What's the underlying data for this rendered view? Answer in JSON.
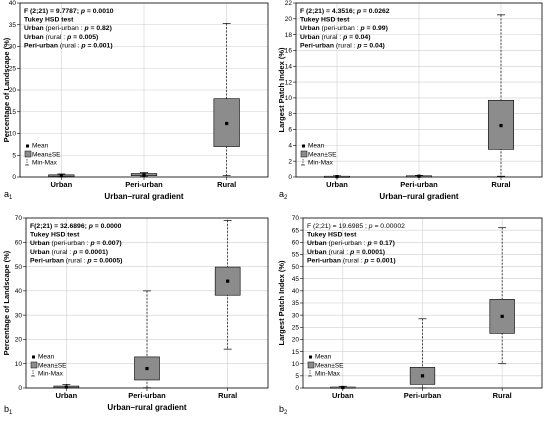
{
  "panels": [
    {
      "panel_label": "a",
      "panel_sub": "1",
      "stats_lines": [
        [
          {
            "t": "F (2;21) = 9.7787; ",
            "b": true
          },
          {
            "t": "p",
            "b": true,
            "i": true
          },
          {
            "t": " = 0.0010",
            "b": true
          }
        ],
        [
          {
            "t": "Tukey HSD test",
            "b": true
          }
        ],
        [
          {
            "t": "Urban ",
            "b": true
          },
          {
            "t": "(peri-urban : ",
            "b": false
          },
          {
            "t": "p",
            "b": true,
            "i": true
          },
          {
            "t": " = 0.82)",
            "b": true
          }
        ],
        [
          {
            "t": "Urban ",
            "b": true
          },
          {
            "t": "(rural : ",
            "b": false
          },
          {
            "t": "p",
            "b": true,
            "i": true
          },
          {
            "t": " = 0.005)",
            "b": true
          }
        ],
        [
          {
            "t": "Peri-urban ",
            "b": true
          },
          {
            "t": "(rural : ",
            "b": false
          },
          {
            "t": "p",
            "b": true,
            "i": true
          },
          {
            "t": " = 0.001)",
            "b": true
          }
        ]
      ],
      "legend": {
        "mean": "Mean",
        "se": "Mean±SE",
        "minmax": "Min-Max"
      },
      "chart_data": {
        "type": "box",
        "ylabel": "Percentage of Landscape (%)",
        "xlabel": "Urban–rural gradient",
        "categories": [
          "Urban",
          "Peri-urban",
          "Rural"
        ],
        "ylim": [
          0,
          40
        ],
        "yticks": [
          0,
          5,
          10,
          15,
          20,
          25,
          30,
          35,
          40
        ],
        "series": [
          {
            "category": "Urban",
            "mean": 0.3,
            "se_low": 0.1,
            "se_high": 0.5,
            "min": 0.0,
            "max": 0.7
          },
          {
            "category": "Peri-urban",
            "mean": 0.5,
            "se_low": 0.3,
            "se_high": 0.8,
            "min": 0.1,
            "max": 1.0
          },
          {
            "category": "Rural",
            "mean": 12.3,
            "se_low": 7.0,
            "se_high": 18.0,
            "min": 0.3,
            "max": 35.3
          }
        ]
      }
    },
    {
      "panel_label": "a",
      "panel_sub": "2",
      "stats_lines": [
        [
          {
            "t": "F (2;21) = 4.3516; ",
            "b": true
          },
          {
            "t": "p",
            "b": true,
            "i": true
          },
          {
            "t": " = 0.0262",
            "b": true
          }
        ],
        [
          {
            "t": "Tukey HSD test",
            "b": true
          }
        ],
        [
          {
            "t": "Urban ",
            "b": true
          },
          {
            "t": "(peri-urban : ",
            "b": false
          },
          {
            "t": "p",
            "b": true,
            "i": true
          },
          {
            "t": " = 0.99)",
            "b": true
          }
        ],
        [
          {
            "t": "Urban ",
            "b": true
          },
          {
            "t": "(rural : ",
            "b": false
          },
          {
            "t": "p",
            "b": true,
            "i": true
          },
          {
            "t": " = 0.04)",
            "b": true
          }
        ],
        [
          {
            "t": "Peri-urban ",
            "b": true
          },
          {
            "t": "(rural : ",
            "b": false
          },
          {
            "t": "p",
            "b": true,
            "i": true
          },
          {
            "t": " = 0.04)",
            "b": true
          }
        ]
      ],
      "legend": {
        "mean": "Mean",
        "se": "Mean±SE",
        "minmax": "Min-Max"
      },
      "chart_data": {
        "type": "box",
        "ylabel": "Largest Patch Index (%)",
        "xlabel": "Urban–rural gradient",
        "categories": [
          "Urban",
          "Peri-urban",
          "Rural"
        ],
        "ylim": [
          0,
          22
        ],
        "yticks": [
          0,
          2,
          4,
          6,
          8,
          10,
          12,
          14,
          16,
          18,
          20,
          22
        ],
        "series": [
          {
            "category": "Urban",
            "mean": 0.05,
            "se_low": 0.0,
            "se_high": 0.1,
            "min": 0.0,
            "max": 0.15
          },
          {
            "category": "Peri-urban",
            "mean": 0.1,
            "se_low": 0.05,
            "se_high": 0.15,
            "min": 0.0,
            "max": 0.2
          },
          {
            "category": "Rural",
            "mean": 6.5,
            "se_low": 3.5,
            "se_high": 9.7,
            "min": 0.1,
            "max": 20.5
          }
        ]
      }
    },
    {
      "panel_label": "b",
      "panel_sub": "1",
      "stats_lines": [
        [
          {
            "t": "F(2;21) = 32.6896; ",
            "b": true
          },
          {
            "t": "p",
            "b": true,
            "i": true
          },
          {
            "t": " = 0.0000",
            "b": true
          }
        ],
        [
          {
            "t": "Tukey HSD test",
            "b": true
          }
        ],
        [
          {
            "t": "Urban ",
            "b": true
          },
          {
            "t": "(peri-urban : ",
            "b": false
          },
          {
            "t": "p",
            "b": true,
            "i": true
          },
          {
            "t": " = 0.007)",
            "b": true
          }
        ],
        [
          {
            "t": "Urban ",
            "b": true
          },
          {
            "t": "(rural : ",
            "b": false
          },
          {
            "t": "p",
            "b": true,
            "i": true
          },
          {
            "t": " = 0.0001)",
            "b": true
          }
        ],
        [
          {
            "t": "Peri-urban ",
            "b": true
          },
          {
            "t": "(rural : ",
            "b": false
          },
          {
            "t": "p",
            "b": true,
            "i": true
          },
          {
            "t": " = 0.0005)",
            "b": true
          }
        ]
      ],
      "legend": {
        "mean": "Mean",
        "se": "Mean±SE",
        "minmax": "Min-Max"
      },
      "chart_data": {
        "type": "box",
        "ylabel": "Percentage of Landscape (%)",
        "xlabel": "Urban–rural gradient",
        "categories": [
          "Urban",
          "Peri-urban",
          "Rural"
        ],
        "ylim": [
          0,
          70
        ],
        "yticks": [
          0,
          10,
          20,
          30,
          40,
          50,
          60,
          70
        ],
        "series": [
          {
            "category": "Urban",
            "mean": 0.4,
            "se_low": 0.1,
            "se_high": 0.8,
            "min": 0.0,
            "max": 1.5
          },
          {
            "category": "Peri-urban",
            "mean": 8.0,
            "se_low": 3.3,
            "se_high": 12.8,
            "min": 0.1,
            "max": 40.0
          },
          {
            "category": "Rural",
            "mean": 44.0,
            "se_low": 38.2,
            "se_high": 49.8,
            "min": 16.0,
            "max": 69.0
          }
        ]
      }
    },
    {
      "panel_label": "b",
      "panel_sub": "2",
      "stats_lines": [
        [
          {
            "t": "F (2;21) = 19.6985 ; ",
            "b": false
          },
          {
            "t": "p",
            "b": false,
            "i": true
          },
          {
            "t": " = 0.00002",
            "b": false
          }
        ],
        [
          {
            "t": "Tukey HSD test",
            "b": true
          }
        ],
        [
          {
            "t": "Urban ",
            "b": true
          },
          {
            "t": "(peri-urban : ",
            "b": false
          },
          {
            "t": "p",
            "b": true,
            "i": true
          },
          {
            "t": " = 0.17)",
            "b": true
          }
        ],
        [
          {
            "t": "Urban ",
            "b": true
          },
          {
            "t": "(rural : ",
            "b": false
          },
          {
            "t": "p",
            "b": true,
            "i": true
          },
          {
            "t": " = 0.0001)",
            "b": true
          }
        ],
        [
          {
            "t": "Peri-urban ",
            "b": true
          },
          {
            "t": "(rural : ",
            "b": false
          },
          {
            "t": "p",
            "b": true,
            "i": true
          },
          {
            "t": " = 0.001)",
            "b": true
          }
        ]
      ],
      "legend": {
        "mean": "Mean",
        "se": "Mean±SE",
        "minmax": "Min-Max"
      },
      "chart_data": {
        "type": "box",
        "ylabel": "Largest Patch Index (%)",
        "xlabel": "",
        "categories": [
          "Urban",
          "Peri-urban",
          "Rural"
        ],
        "ylim": [
          0,
          70
        ],
        "yticks": [
          0,
          5,
          10,
          15,
          20,
          25,
          30,
          35,
          40,
          45,
          50,
          55,
          60,
          65,
          70
        ],
        "series": [
          {
            "category": "Urban",
            "mean": 0.2,
            "se_low": 0.0,
            "se_high": 0.4,
            "min": 0.0,
            "max": 0.7
          },
          {
            "category": "Peri-urban",
            "mean": 5.0,
            "se_low": 1.5,
            "se_high": 8.5,
            "min": 0.0,
            "max": 28.5
          },
          {
            "category": "Rural",
            "mean": 29.5,
            "se_low": 22.5,
            "se_high": 36.5,
            "min": 10.0,
            "max": 66.0
          }
        ]
      }
    }
  ],
  "colors": {
    "box_fill": "#8c8c8c",
    "frame": "#000000",
    "grid": "#d0d0d0"
  }
}
